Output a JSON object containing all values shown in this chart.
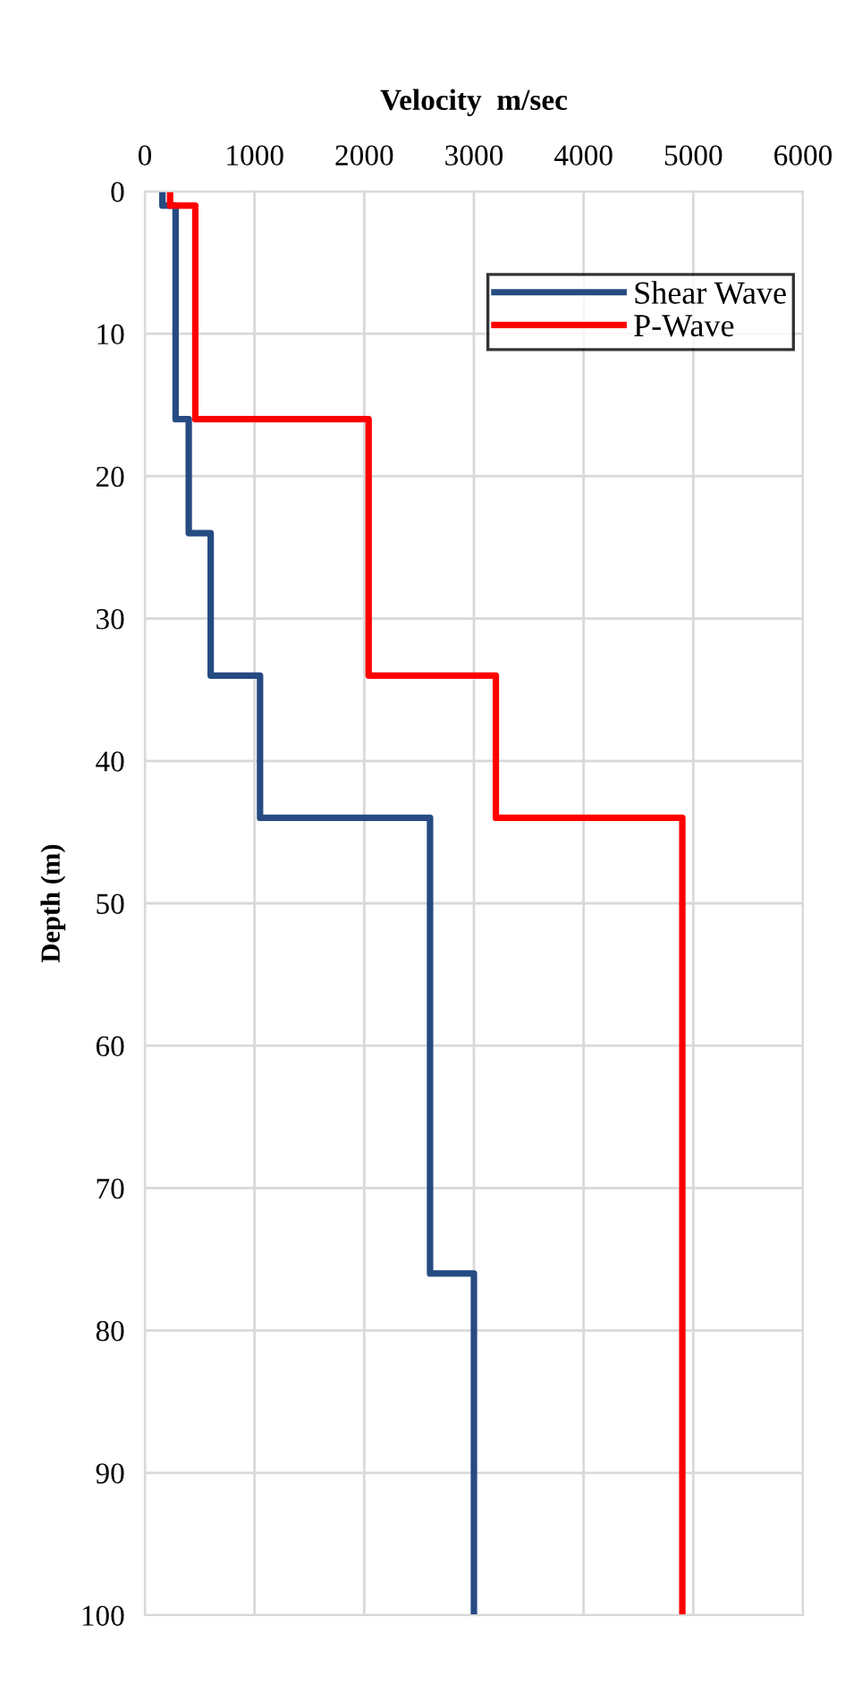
{
  "chart_data": {
    "type": "line",
    "xlabel": "Velocity  m/sec",
    "ylabel": "Depth (m)",
    "xlim": [
      0,
      6000
    ],
    "xticks": [
      0,
      1000,
      2000,
      3000,
      4000,
      5000,
      6000
    ],
    "ylim": [
      100,
      0
    ],
    "yticks": [
      0,
      10,
      20,
      30,
      40,
      50,
      60,
      70,
      80,
      90,
      100
    ],
    "grid": true,
    "legend": "top right",
    "marker": "none",
    "line_style": "solid",
    "series": [
      {
        "name": "Shear Wave",
        "color": "#264b82",
        "x": [
          160,
          160,
          280,
          280,
          400,
          400,
          600,
          600,
          1050,
          1050,
          2600,
          2600,
          3000,
          3000
        ],
        "values": [
          0,
          1,
          1,
          16,
          16,
          24,
          24,
          34,
          34,
          44,
          44,
          76,
          76,
          100
        ]
      },
      {
        "name": "P-Wave",
        "color": "#ff0000",
        "x": [
          230,
          230,
          460,
          460,
          2040,
          2040,
          3200,
          3200,
          4900,
          4900
        ],
        "values": [
          0,
          1,
          1,
          16,
          16,
          34,
          34,
          44,
          44,
          100
        ]
      }
    ]
  }
}
